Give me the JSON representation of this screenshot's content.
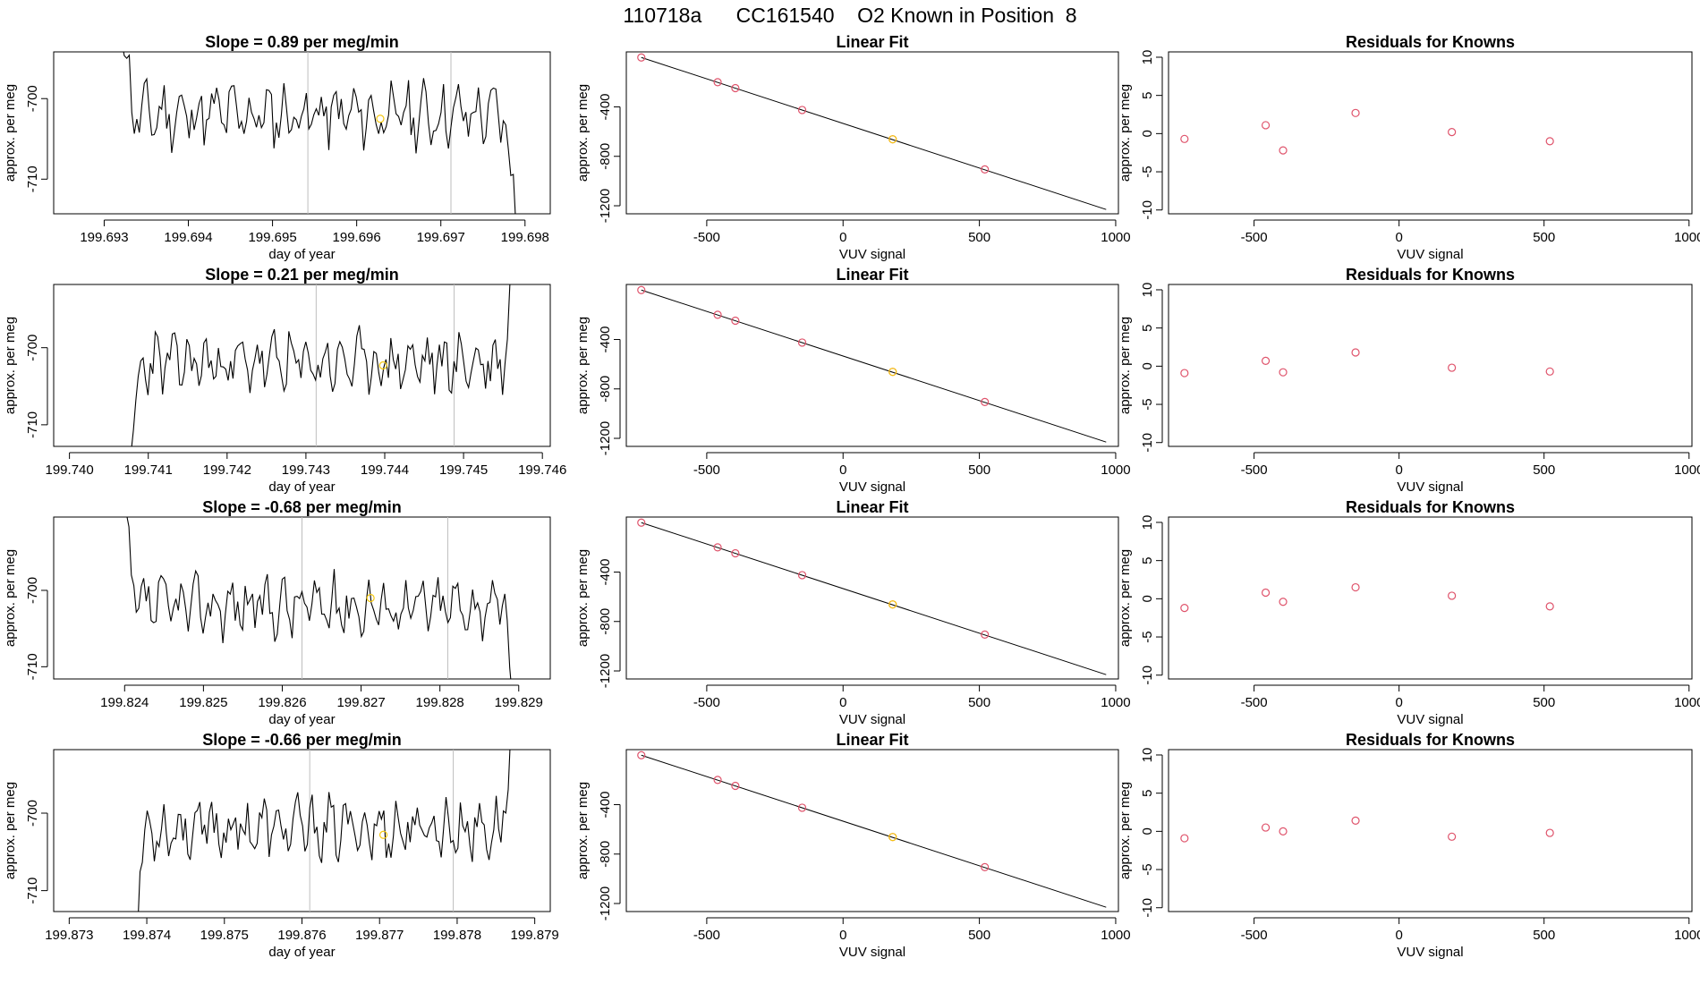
{
  "page_title": "110718a      CC161540    O2 Known in Position  8",
  "colors": {
    "trace": "#000000",
    "fit_line": "#000000",
    "vertical_marker": "#bebebe",
    "known_point": "#df536b",
    "highlight_point": "#f5c710",
    "axis": "#000000"
  },
  "chart_data": [
    {
      "type": "line",
      "title": "Slope =  0.89  per meg/min",
      "xlabel": "day of year",
      "ylabel": "approx. per meg",
      "xlim": [
        199.6924,
        199.6983
      ],
      "ylim": [
        -714.3,
        -694.2
      ],
      "x_ticks": [
        "199.693",
        "199.694",
        "199.695",
        "199.696",
        "199.697",
        "199.698"
      ],
      "y_ticks": [
        "-700",
        "-710"
      ],
      "start": 199.69318,
      "end": 199.69792,
      "seed": 11,
      "enter": "top",
      "exit": "bottom",
      "vlines": [
        199.69542,
        199.69712
      ],
      "highlight": {
        "x": 199.69628,
        "y": -702.5
      }
    },
    {
      "type": "scatter+line",
      "title": "Linear Fit",
      "xlabel": "VUV signal",
      "ylabel": "approx. per meg",
      "xlim": [
        -795,
        1010
      ],
      "ylim": [
        -1265,
        45
      ],
      "x_ticks": [
        "-500",
        "0",
        "500",
        "1000"
      ],
      "y_ticks": [
        "-400",
        "-800",
        "-1200"
      ],
      "fit_line": {
        "x": [
          -740,
          965
        ],
        "y": [
          0,
          -1230
        ]
      },
      "points": [
        {
          "x": -740,
          "y": 0
        },
        {
          "x": -460,
          "y": -200
        },
        {
          "x": -395,
          "y": -248
        },
        {
          "x": -150,
          "y": -425
        },
        {
          "x": 182,
          "y": -662
        },
        {
          "x": 520,
          "y": -906
        }
      ],
      "highlight": {
        "x": 182,
        "y": -662
      }
    },
    {
      "type": "scatter",
      "title": "Residuals for Knowns",
      "xlabel": "VUV signal",
      "ylabel": "approx. per meg",
      "xlim": [
        -795,
        1010
      ],
      "ylim": [
        -10.5,
        10.7
      ],
      "x_ticks": [
        "-500",
        "0",
        "500",
        "1000"
      ],
      "y_ticks": [
        "-10",
        "-5",
        "0",
        "5",
        "10"
      ],
      "points": [
        {
          "x": -740,
          "y": -0.7
        },
        {
          "x": -460,
          "y": 1.1
        },
        {
          "x": -400,
          "y": -2.2
        },
        {
          "x": -150,
          "y": 2.7
        },
        {
          "x": 182,
          "y": 0.2
        },
        {
          "x": 520,
          "y": -1.0
        }
      ]
    },
    {
      "type": "line",
      "title": "Slope =  0.21  per meg/min",
      "xlabel": "day of year",
      "ylabel": "approx. per meg",
      "xlim": [
        199.7398,
        199.7461
      ],
      "ylim": [
        -712.8,
        -691.8
      ],
      "x_ticks": [
        "199.740",
        "199.741",
        "199.742",
        "199.743",
        "199.744",
        "199.745",
        "199.746"
      ],
      "y_ticks": [
        "-700",
        "-710"
      ],
      "start": 199.74075,
      "end": 199.74568,
      "seed": 23,
      "enter": "bottom",
      "exit": "top",
      "vlines": [
        199.74313,
        199.74488
      ],
      "highlight": {
        "x": 199.74398,
        "y": -702.3
      }
    },
    {
      "type": "scatter+line",
      "title": "Linear Fit",
      "xlabel": "VUV signal",
      "ylabel": "approx. per meg",
      "xlim": [
        -795,
        1010
      ],
      "ylim": [
        -1265,
        45
      ],
      "x_ticks": [
        "-500",
        "0",
        "500",
        "1000"
      ],
      "y_ticks": [
        "-400",
        "-800",
        "-1200"
      ],
      "fit_line": {
        "x": [
          -740,
          965
        ],
        "y": [
          0,
          -1230
        ]
      },
      "points": [
        {
          "x": -740,
          "y": 0
        },
        {
          "x": -460,
          "y": -200
        },
        {
          "x": -395,
          "y": -248
        },
        {
          "x": -150,
          "y": -425
        },
        {
          "x": 182,
          "y": -662
        },
        {
          "x": 520,
          "y": -906
        }
      ],
      "highlight": {
        "x": 182,
        "y": -662
      }
    },
    {
      "type": "scatter",
      "title": "Residuals for Knowns",
      "xlabel": "VUV signal",
      "ylabel": "approx. per meg",
      "xlim": [
        -795,
        1010
      ],
      "ylim": [
        -10.5,
        10.7
      ],
      "x_ticks": [
        "-500",
        "0",
        "500",
        "1000"
      ],
      "y_ticks": [
        "-10",
        "-5",
        "0",
        "5",
        "10"
      ],
      "points": [
        {
          "x": -740,
          "y": -0.9
        },
        {
          "x": -460,
          "y": 0.7
        },
        {
          "x": -400,
          "y": -0.8
        },
        {
          "x": -150,
          "y": 1.8
        },
        {
          "x": 182,
          "y": -0.2
        },
        {
          "x": 520,
          "y": -0.7
        }
      ]
    },
    {
      "type": "line",
      "title": "Slope =  -0.68  per meg/min",
      "xlabel": "day of year",
      "ylabel": "approx. per meg",
      "xlim": [
        199.8231,
        199.8294
      ],
      "ylim": [
        -711.6,
        -690.4
      ],
      "x_ticks": [
        "199.824",
        "199.825",
        "199.826",
        "199.827",
        "199.828",
        "199.829"
      ],
      "y_ticks": [
        "-700",
        "-710"
      ],
      "start": 199.82396,
      "end": 199.82898,
      "seed": 37,
      "enter": "top",
      "exit": "bottom",
      "vlines": [
        199.82625,
        199.8281
      ],
      "highlight": {
        "x": 199.82712,
        "y": -701.0
      }
    },
    {
      "type": "scatter+line",
      "title": "Linear Fit",
      "xlabel": "VUV signal",
      "ylabel": "approx. per meg",
      "xlim": [
        -795,
        1010
      ],
      "ylim": [
        -1265,
        45
      ],
      "x_ticks": [
        "-500",
        "0",
        "500",
        "1000"
      ],
      "y_ticks": [
        "-400",
        "-800",
        "-1200"
      ],
      "fit_line": {
        "x": [
          -740,
          965
        ],
        "y": [
          0,
          -1230
        ]
      },
      "points": [
        {
          "x": -740,
          "y": 0
        },
        {
          "x": -460,
          "y": -200
        },
        {
          "x": -395,
          "y": -248
        },
        {
          "x": -150,
          "y": -425
        },
        {
          "x": 182,
          "y": -662
        },
        {
          "x": 520,
          "y": -906
        }
      ],
      "highlight": {
        "x": 182,
        "y": -662
      }
    },
    {
      "type": "scatter",
      "title": "Residuals for Knowns",
      "xlabel": "VUV signal",
      "ylabel": "approx. per meg",
      "xlim": [
        -795,
        1010
      ],
      "ylim": [
        -10.5,
        10.7
      ],
      "x_ticks": [
        "-500",
        "0",
        "500",
        "1000"
      ],
      "y_ticks": [
        "-10",
        "-5",
        "0",
        "5",
        "10"
      ],
      "points": [
        {
          "x": -740,
          "y": -1.2
        },
        {
          "x": -460,
          "y": 0.8
        },
        {
          "x": -400,
          "y": -0.4
        },
        {
          "x": -150,
          "y": 1.5
        },
        {
          "x": 182,
          "y": 0.4
        },
        {
          "x": 520,
          "y": -1.0
        }
      ]
    },
    {
      "type": "line",
      "title": "Slope =  -0.66  per meg/min",
      "xlabel": "day of year",
      "ylabel": "approx. per meg",
      "xlim": [
        199.8728,
        199.8792
      ],
      "ylim": [
        -712.7,
        -691.8
      ],
      "x_ticks": [
        "199.873",
        "199.874",
        "199.875",
        "199.876",
        "199.877",
        "199.878",
        "199.879"
      ],
      "y_ticks": [
        "-700",
        "-710"
      ],
      "start": 199.87382,
      "end": 199.87875,
      "seed": 53,
      "enter": "bottom",
      "exit": "top",
      "vlines": [
        199.8761,
        199.87795
      ],
      "highlight": {
        "x": 199.87705,
        "y": -702.8
      }
    },
    {
      "type": "scatter+line",
      "title": "Linear Fit",
      "xlabel": "VUV signal",
      "ylabel": "approx. per meg",
      "xlim": [
        -795,
        1010
      ],
      "ylim": [
        -1265,
        45
      ],
      "x_ticks": [
        "-500",
        "0",
        "500",
        "1000"
      ],
      "y_ticks": [
        "-400",
        "-800",
        "-1200"
      ],
      "fit_line": {
        "x": [
          -740,
          965
        ],
        "y": [
          0,
          -1230
        ]
      },
      "points": [
        {
          "x": -740,
          "y": 0
        },
        {
          "x": -460,
          "y": -200
        },
        {
          "x": -395,
          "y": -248
        },
        {
          "x": -150,
          "y": -425
        },
        {
          "x": 182,
          "y": -662
        },
        {
          "x": 520,
          "y": -906
        }
      ],
      "highlight": {
        "x": 182,
        "y": -662
      }
    },
    {
      "type": "scatter",
      "title": "Residuals for Knowns",
      "xlabel": "VUV signal",
      "ylabel": "approx. per meg",
      "xlim": [
        -795,
        1010
      ],
      "ylim": [
        -10.5,
        10.7
      ],
      "x_ticks": [
        "-500",
        "0",
        "500",
        "1000"
      ],
      "y_ticks": [
        "-10",
        "-5",
        "0",
        "5",
        "10"
      ],
      "points": [
        {
          "x": -740,
          "y": -0.9
        },
        {
          "x": -460,
          "y": 0.5
        },
        {
          "x": -400,
          "y": 0.0
        },
        {
          "x": -150,
          "y": 1.4
        },
        {
          "x": 182,
          "y": -0.7
        },
        {
          "x": 520,
          "y": -0.2
        }
      ]
    }
  ]
}
